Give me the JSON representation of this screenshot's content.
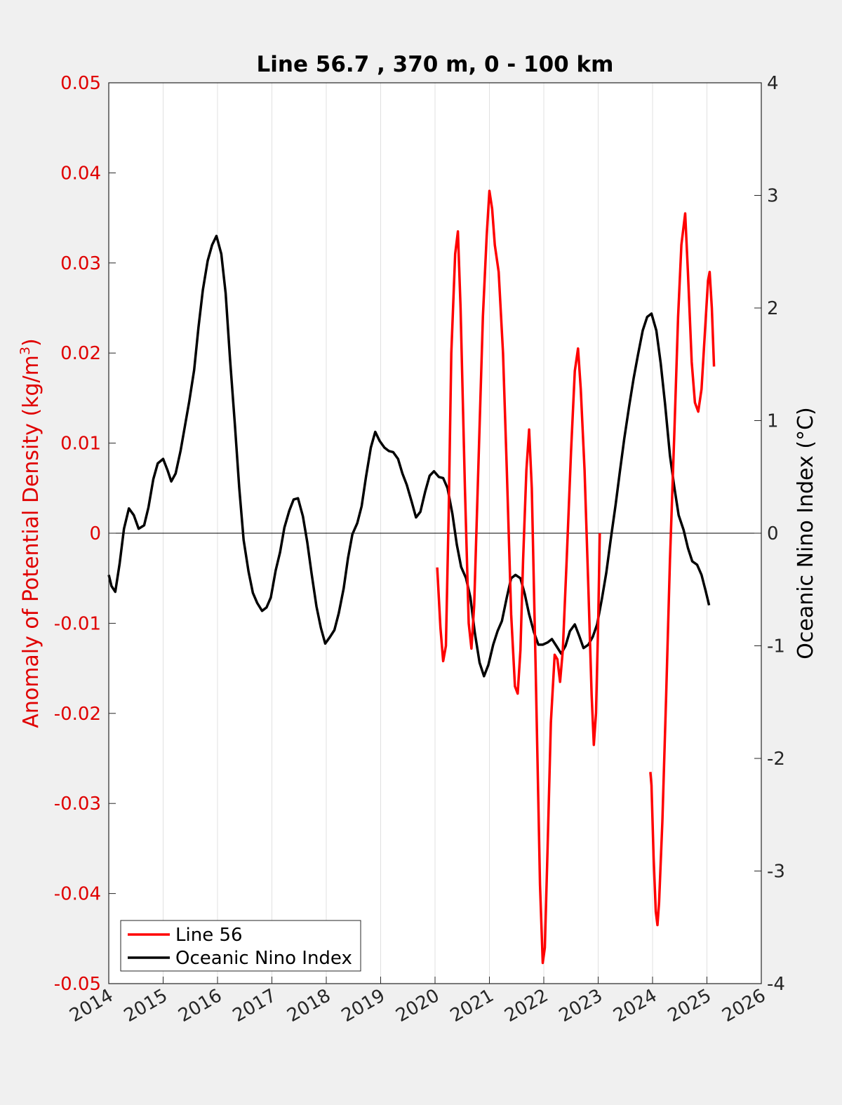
{
  "chart_data": {
    "type": "line",
    "title": "Line 56.7 , 370 m, 0 - 100 km",
    "ylabel_left_main": "Anomaly of Potential Density (kg/m",
    "ylabel_left_sup": "3",
    "ylabel_left_end": ")",
    "ylabel_right": "Oceanic Nino Index (°C)",
    "xlim": [
      2014,
      2026
    ],
    "ylim_left": [
      -0.05,
      0.05
    ],
    "ylim_right": [
      -4,
      4
    ],
    "x_ticks": [
      "2014",
      "2015",
      "2016",
      "2017",
      "2018",
      "2019",
      "2020",
      "2021",
      "2022",
      "2023",
      "2024",
      "2025",
      "2026"
    ],
    "y_left_ticks": [
      "0.05",
      "0.04",
      "0.03",
      "0.02",
      "0.01",
      "0",
      "-0.01",
      "-0.02",
      "-0.03",
      "-0.04",
      "-0.05"
    ],
    "y_right_ticks": [
      "4",
      "3",
      "2",
      "1",
      "0",
      "-1",
      "-2",
      "-3",
      "-4"
    ],
    "grid": "vertical",
    "zero_line": true,
    "legend_position": "bottom-left",
    "colors": {
      "line56": "#ff0000",
      "oni": "#000000",
      "left_axis": "#e00000"
    },
    "series": [
      {
        "name": "Line 56",
        "axis": "left",
        "segments": [
          [
            [
              2020.04,
              -0.0038
            ],
            [
              2020.1,
              -0.0105
            ],
            [
              2020.15,
              -0.0142
            ],
            [
              2020.2,
              -0.0125
            ],
            [
              2020.25,
              0.002
            ],
            [
              2020.3,
              0.02
            ],
            [
              2020.37,
              0.031
            ],
            [
              2020.42,
              0.0335
            ],
            [
              2020.47,
              0.025
            ],
            [
              2020.55,
              0.005
            ],
            [
              2020.62,
              -0.01
            ],
            [
              2020.67,
              -0.0128
            ],
            [
              2020.72,
              -0.008
            ],
            [
              2020.8,
              0.008
            ],
            [
              2020.88,
              0.024
            ],
            [
              2020.95,
              0.033
            ],
            [
              2021.0,
              0.038
            ],
            [
              2021.05,
              0.036
            ],
            [
              2021.1,
              0.032
            ],
            [
              2021.17,
              0.029
            ],
            [
              2021.25,
              0.02
            ],
            [
              2021.32,
              0.007
            ],
            [
              2021.4,
              -0.009
            ],
            [
              2021.47,
              -0.017
            ],
            [
              2021.52,
              -0.0178
            ],
            [
              2021.57,
              -0.013
            ],
            [
              2021.62,
              -0.003
            ],
            [
              2021.68,
              0.007
            ],
            [
              2021.73,
              0.0115
            ],
            [
              2021.78,
              0.005
            ],
            [
              2021.85,
              -0.015
            ],
            [
              2021.93,
              -0.039
            ],
            [
              2021.98,
              -0.0477
            ],
            [
              2022.02,
              -0.046
            ],
            [
              2022.07,
              -0.035
            ],
            [
              2022.13,
              -0.021
            ],
            [
              2022.2,
              -0.0135
            ],
            [
              2022.25,
              -0.014
            ],
            [
              2022.3,
              -0.0165
            ],
            [
              2022.35,
              -0.013
            ],
            [
              2022.42,
              -0.003
            ],
            [
              2022.5,
              0.009
            ],
            [
              2022.57,
              0.018
            ],
            [
              2022.63,
              0.0205
            ],
            [
              2022.68,
              0.016
            ],
            [
              2022.75,
              0.007
            ],
            [
              2022.82,
              -0.006
            ],
            [
              2022.88,
              -0.018
            ],
            [
              2022.92,
              -0.0235
            ],
            [
              2022.96,
              -0.02
            ],
            [
              2023.0,
              -0.01
            ],
            [
              2023.03,
              0.0
            ]
          ],
          [
            [
              2023.96,
              -0.0265
            ],
            [
              2023.98,
              -0.028
            ],
            [
              2024.02,
              -0.036
            ],
            [
              2024.06,
              -0.042
            ],
            [
              2024.09,
              -0.0435
            ],
            [
              2024.12,
              -0.041
            ],
            [
              2024.18,
              -0.032
            ],
            [
              2024.25,
              -0.018
            ],
            [
              2024.32,
              -0.003
            ],
            [
              2024.4,
              0.011
            ],
            [
              2024.47,
              0.024
            ],
            [
              2024.53,
              0.032
            ],
            [
              2024.6,
              0.0355
            ],
            [
              2024.65,
              0.029
            ],
            [
              2024.72,
              0.019
            ],
            [
              2024.78,
              0.0145
            ],
            [
              2024.84,
              0.0135
            ],
            [
              2024.9,
              0.016
            ],
            [
              2024.96,
              0.022
            ],
            [
              2025.02,
              0.028
            ],
            [
              2025.05,
              0.029
            ],
            [
              2025.09,
              0.025
            ],
            [
              2025.13,
              0.0185
            ]
          ]
        ]
      },
      {
        "name": "Oceanic Nino Index",
        "axis": "right",
        "points": [
          [
            2014.0,
            -0.37
          ],
          [
            2014.05,
            -0.47
          ],
          [
            2014.12,
            -0.52
          ],
          [
            2014.2,
            -0.27
          ],
          [
            2014.28,
            0.04
          ],
          [
            2014.37,
            0.22
          ],
          [
            2014.46,
            0.16
          ],
          [
            2014.55,
            0.04
          ],
          [
            2014.65,
            0.07
          ],
          [
            2014.73,
            0.23
          ],
          [
            2014.82,
            0.48
          ],
          [
            2014.9,
            0.62
          ],
          [
            2015.0,
            0.66
          ],
          [
            2015.08,
            0.56
          ],
          [
            2015.15,
            0.46
          ],
          [
            2015.23,
            0.53
          ],
          [
            2015.32,
            0.73
          ],
          [
            2015.4,
            0.95
          ],
          [
            2015.48,
            1.17
          ],
          [
            2015.57,
            1.45
          ],
          [
            2015.65,
            1.83
          ],
          [
            2015.73,
            2.16
          ],
          [
            2015.82,
            2.42
          ],
          [
            2015.9,
            2.56
          ],
          [
            2015.98,
            2.64
          ],
          [
            2016.07,
            2.48
          ],
          [
            2016.15,
            2.13
          ],
          [
            2016.23,
            1.55
          ],
          [
            2016.32,
            0.96
          ],
          [
            2016.4,
            0.4
          ],
          [
            2016.48,
            -0.06
          ],
          [
            2016.57,
            -0.34
          ],
          [
            2016.65,
            -0.53
          ],
          [
            2016.73,
            -0.62
          ],
          [
            2016.82,
            -0.69
          ],
          [
            2016.9,
            -0.66
          ],
          [
            2016.98,
            -0.57
          ],
          [
            2017.07,
            -0.33
          ],
          [
            2017.15,
            -0.17
          ],
          [
            2017.23,
            0.05
          ],
          [
            2017.32,
            0.2
          ],
          [
            2017.4,
            0.3
          ],
          [
            2017.48,
            0.31
          ],
          [
            2017.57,
            0.15
          ],
          [
            2017.65,
            -0.08
          ],
          [
            2017.73,
            -0.36
          ],
          [
            2017.82,
            -0.65
          ],
          [
            2017.9,
            -0.84
          ],
          [
            2017.98,
            -0.98
          ],
          [
            2018.07,
            -0.92
          ],
          [
            2018.15,
            -0.86
          ],
          [
            2018.23,
            -0.71
          ],
          [
            2018.32,
            -0.49
          ],
          [
            2018.4,
            -0.22
          ],
          [
            2018.48,
            -0.01
          ],
          [
            2018.57,
            0.09
          ],
          [
            2018.65,
            0.24
          ],
          [
            2018.73,
            0.5
          ],
          [
            2018.82,
            0.76
          ],
          [
            2018.9,
            0.9
          ],
          [
            2018.98,
            0.82
          ],
          [
            2019.07,
            0.76
          ],
          [
            2019.15,
            0.73
          ],
          [
            2019.23,
            0.72
          ],
          [
            2019.32,
            0.66
          ],
          [
            2019.4,
            0.53
          ],
          [
            2019.48,
            0.43
          ],
          [
            2019.57,
            0.28
          ],
          [
            2019.65,
            0.14
          ],
          [
            2019.73,
            0.19
          ],
          [
            2019.82,
            0.37
          ],
          [
            2019.9,
            0.51
          ],
          [
            2019.98,
            0.55
          ],
          [
            2020.07,
            0.5
          ],
          [
            2020.15,
            0.49
          ],
          [
            2020.23,
            0.4
          ],
          [
            2020.32,
            0.17
          ],
          [
            2020.4,
            -0.1
          ],
          [
            2020.48,
            -0.3
          ],
          [
            2020.57,
            -0.4
          ],
          [
            2020.65,
            -0.57
          ],
          [
            2020.73,
            -0.88
          ],
          [
            2020.82,
            -1.15
          ],
          [
            2020.9,
            -1.27
          ],
          [
            2020.98,
            -1.17
          ],
          [
            2021.07,
            -0.99
          ],
          [
            2021.15,
            -0.87
          ],
          [
            2021.23,
            -0.78
          ],
          [
            2021.32,
            -0.57
          ],
          [
            2021.4,
            -0.4
          ],
          [
            2021.48,
            -0.37
          ],
          [
            2021.57,
            -0.4
          ],
          [
            2021.65,
            -0.54
          ],
          [
            2021.73,
            -0.72
          ],
          [
            2021.82,
            -0.88
          ],
          [
            2021.9,
            -0.99
          ],
          [
            2021.98,
            -0.99
          ],
          [
            2022.07,
            -0.97
          ],
          [
            2022.15,
            -0.94
          ],
          [
            2022.23,
            -1.0
          ],
          [
            2022.32,
            -1.07
          ],
          [
            2022.4,
            -1.0
          ],
          [
            2022.48,
            -0.87
          ],
          [
            2022.57,
            -0.81
          ],
          [
            2022.65,
            -0.91
          ],
          [
            2022.73,
            -1.02
          ],
          [
            2022.82,
            -0.99
          ],
          [
            2022.9,
            -0.92
          ],
          [
            2022.98,
            -0.81
          ],
          [
            2023.07,
            -0.58
          ],
          [
            2023.15,
            -0.35
          ],
          [
            2023.23,
            -0.06
          ],
          [
            2023.32,
            0.25
          ],
          [
            2023.4,
            0.55
          ],
          [
            2023.48,
            0.84
          ],
          [
            2023.57,
            1.13
          ],
          [
            2023.65,
            1.37
          ],
          [
            2023.73,
            1.58
          ],
          [
            2023.82,
            1.8
          ],
          [
            2023.9,
            1.92
          ],
          [
            2023.98,
            1.95
          ],
          [
            2024.07,
            1.8
          ],
          [
            2024.15,
            1.51
          ],
          [
            2024.23,
            1.15
          ],
          [
            2024.32,
            0.69
          ],
          [
            2024.4,
            0.41
          ],
          [
            2024.48,
            0.16
          ],
          [
            2024.57,
            0.03
          ],
          [
            2024.65,
            -0.13
          ],
          [
            2024.73,
            -0.25
          ],
          [
            2024.82,
            -0.28
          ],
          [
            2024.9,
            -0.37
          ],
          [
            2024.98,
            -0.52
          ],
          [
            2025.04,
            -0.64
          ]
        ]
      }
    ]
  }
}
